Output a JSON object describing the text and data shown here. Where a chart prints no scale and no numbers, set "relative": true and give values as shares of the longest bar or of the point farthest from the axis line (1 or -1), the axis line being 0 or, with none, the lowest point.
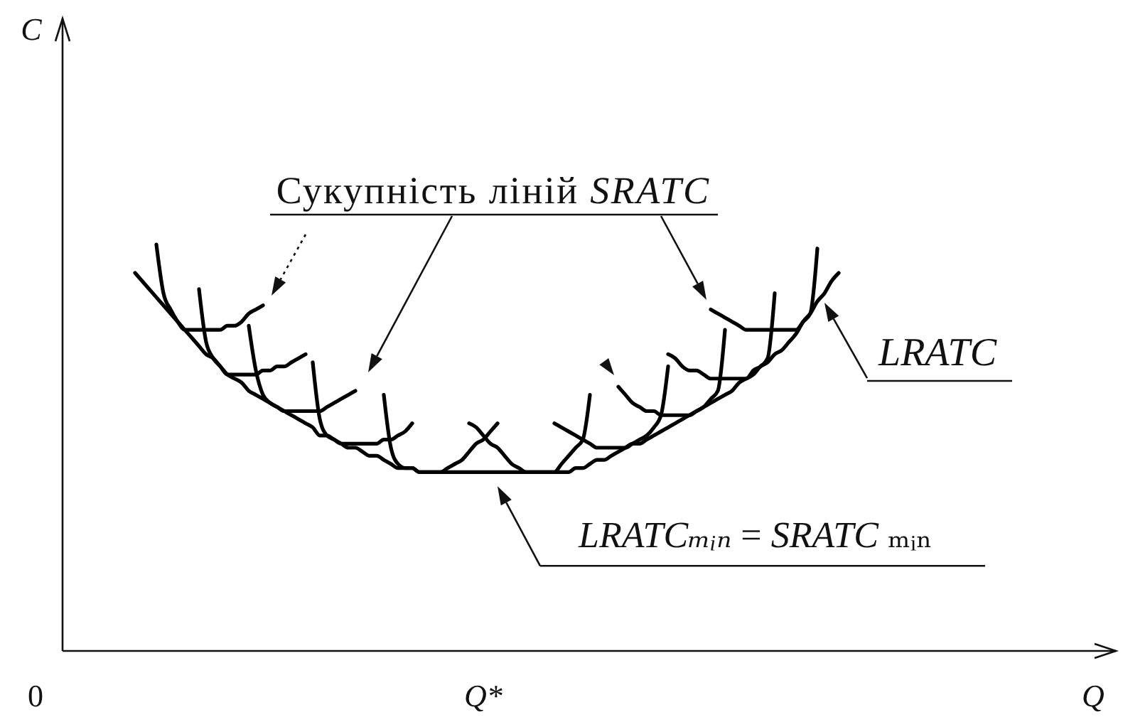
{
  "chart_data": {
    "type": "line",
    "relative": true,
    "categories": [
      "0",
      null,
      null,
      null,
      null,
      null,
      null,
      null,
      null,
      null,
      null,
      null,
      null,
      null,
      null,
      null,
      null,
      null,
      null,
      null,
      null,
      null,
      null,
      null,
      null,
      null,
      null,
      null,
      null,
      null,
      null,
      null,
      null,
      null,
      null,
      null,
      null,
      null,
      null,
      null,
      null,
      null,
      null,
      null,
      null,
      null,
      null,
      null,
      null,
      null,
      null,
      null,
      null,
      null,
      null,
      null,
      null,
      null,
      null,
      null,
      null,
      null,
      null,
      "Q*",
      null,
      null,
      null,
      null,
      null,
      null,
      null,
      null,
      null,
      null,
      null,
      null,
      null,
      null,
      null,
      null,
      null,
      null,
      null,
      null,
      null,
      null,
      null,
      null,
      null,
      null,
      null,
      null,
      null,
      null,
      null,
      null,
      null,
      null,
      null,
      null,
      null,
      null,
      null,
      null,
      null,
      null,
      null,
      null,
      null,
      null,
      null,
      null,
      null,
      null
    ],
    "series": [
      {
        "name": "LRATC",
        "color": "#000000",
        "values": [
          null,
          null,
          null,
          null,
          null,
          null,
          null,
          null,
          null,
          null,
          null,
          null,
          null,
          null,
          0.93,
          0.91,
          0.89,
          0.87,
          0.85,
          0.83,
          0.81,
          0.79,
          0.77,
          0.75,
          0.73,
          0.72,
          0.7,
          0.68,
          0.67,
          0.66,
          0.64,
          0.63,
          0.62,
          0.61,
          0.6,
          0.59,
          0.58,
          0.57,
          0.56,
          0.55,
          0.53,
          0.53,
          0.52,
          0.51,
          0.5,
          0.5,
          0.49,
          0.48,
          0.48,
          0.47,
          0.46,
          0.45,
          0.45,
          0.45,
          0.44,
          0.44,
          0.44,
          0.44,
          0.44,
          0.44,
          0.44,
          0.44,
          0.44,
          0.44,
          0.44,
          0.44,
          0.44,
          0.44,
          0.44,
          0.44,
          0.44,
          0.44,
          0.44,
          0.44,
          0.44,
          0.44,
          0.45,
          0.45,
          0.46,
          0.47,
          0.47,
          0.48,
          0.49,
          0.5,
          0.51,
          0.51,
          0.52,
          0.53,
          0.54,
          0.55,
          0.56,
          0.57,
          0.58,
          0.59,
          0.6,
          0.61,
          0.62,
          0.63,
          0.64,
          0.66,
          0.67,
          0.68,
          0.7,
          0.71,
          0.73,
          0.74,
          0.76,
          0.78,
          0.81,
          0.83,
          0.86,
          0.88,
          0.91,
          0.93
        ]
      },
      {
        "color": "#000000",
        "values": [
          null,
          null,
          null,
          null,
          null,
          null,
          null,
          null,
          null,
          null,
          null,
          null,
          null,
          null,
          null,
          null,
          null,
          1.0,
          0.88,
          0.84,
          0.81,
          0.79,
          0.79,
          0.79,
          0.79,
          0.79,
          0.79,
          0.8,
          0.8,
          0.81,
          0.83,
          0.84,
          0.85,
          null,
          null,
          null,
          null,
          null,
          null,
          null,
          null,
          null,
          null,
          null,
          null,
          null,
          null,
          null,
          null,
          null,
          null,
          null,
          null,
          null,
          null,
          null,
          null,
          null,
          null,
          null,
          null,
          null,
          null,
          null,
          null,
          null,
          null,
          null,
          null,
          null,
          null,
          null,
          null,
          null,
          null,
          null,
          null,
          null,
          null,
          null,
          null,
          null,
          null,
          null,
          null,
          null,
          null,
          null,
          null,
          null,
          null,
          null,
          null,
          null,
          null,
          null,
          null,
          null,
          null,
          null,
          null,
          null,
          null,
          null,
          null,
          null,
          null,
          null,
          null,
          null,
          null,
          null,
          null,
          null
        ]
      },
      {
        "color": "#000000",
        "values": [
          null,
          null,
          null,
          null,
          null,
          null,
          null,
          null,
          null,
          null,
          null,
          null,
          null,
          null,
          null,
          null,
          null,
          null,
          null,
          null,
          null,
          null,
          null,
          0.89,
          0.76,
          0.72,
          0.7,
          0.68,
          0.68,
          0.68,
          0.68,
          0.68,
          0.69,
          0.69,
          0.7,
          0.7,
          0.71,
          0.72,
          0.73,
          null,
          null,
          null,
          null,
          null,
          null,
          null,
          null,
          null,
          null,
          null,
          null,
          null,
          null,
          null,
          null,
          null,
          null,
          null,
          null,
          null,
          null,
          null,
          null,
          null,
          null,
          null,
          null,
          null,
          null,
          null,
          null,
          null,
          null,
          null,
          null,
          null,
          null,
          null,
          null,
          null,
          null,
          null,
          null,
          null,
          null,
          null,
          null,
          null,
          null,
          null,
          null,
          null,
          null,
          null,
          null,
          null,
          null,
          null,
          null,
          null,
          null,
          null,
          null,
          null,
          null,
          null,
          null,
          null,
          null,
          null,
          null,
          null,
          null,
          null
        ]
      },
      {
        "color": "#000000",
        "values": [
          null,
          null,
          null,
          null,
          null,
          null,
          null,
          null,
          null,
          null,
          null,
          null,
          null,
          null,
          null,
          null,
          null,
          null,
          null,
          null,
          null,
          null,
          null,
          null,
          null,
          null,
          null,
          null,
          null,
          null,
          0.8,
          0.69,
          0.63,
          0.61,
          0.6,
          0.59,
          0.59,
          0.59,
          0.59,
          0.59,
          0.59,
          0.6,
          0.61,
          0.62,
          0.63,
          0.64,
          null,
          null,
          null,
          null,
          null,
          null,
          null,
          null,
          null,
          null,
          null,
          null,
          null,
          null,
          null,
          null,
          null,
          null,
          null,
          null,
          null,
          null,
          null,
          null,
          null,
          null,
          null,
          null,
          null,
          null,
          null,
          null,
          null,
          null,
          null,
          null,
          null,
          null,
          null,
          null,
          null,
          null,
          null,
          null,
          null,
          null,
          null,
          null,
          null,
          null,
          null,
          null,
          null,
          null,
          null,
          null,
          null,
          null,
          null,
          null,
          null,
          null,
          null,
          null,
          null,
          null,
          null,
          null
        ]
      },
      {
        "color": "#000000",
        "values": [
          null,
          null,
          null,
          null,
          null,
          null,
          null,
          null,
          null,
          null,
          null,
          null,
          null,
          null,
          null,
          null,
          null,
          null,
          null,
          null,
          null,
          null,
          null,
          null,
          null,
          null,
          null,
          null,
          null,
          null,
          null,
          null,
          null,
          null,
          null,
          null,
          null,
          null,
          null,
          0.71,
          0.57,
          0.53,
          0.52,
          0.51,
          0.51,
          0.51,
          0.51,
          0.51,
          0.51,
          0.52,
          0.52,
          0.53,
          0.54,
          0.56,
          null,
          null,
          null,
          null,
          null,
          null,
          null,
          null,
          null,
          null,
          null,
          null,
          null,
          null,
          null,
          null,
          null,
          null,
          null,
          null,
          null,
          null,
          null,
          null,
          null,
          null,
          null,
          null,
          null,
          null,
          null,
          null,
          null,
          null,
          null,
          null,
          null,
          null,
          null,
          null,
          null,
          null,
          null,
          null,
          null,
          null,
          null,
          null,
          null,
          null,
          null,
          null,
          null,
          null,
          null,
          null,
          null,
          null,
          null,
          null
        ]
      },
      {
        "color": "#000000",
        "values": [
          null,
          null,
          null,
          null,
          null,
          null,
          null,
          null,
          null,
          null,
          null,
          null,
          null,
          null,
          null,
          null,
          null,
          null,
          null,
          null,
          null,
          null,
          null,
          null,
          null,
          null,
          null,
          null,
          null,
          null,
          null,
          null,
          null,
          null,
          null,
          null,
          null,
          null,
          null,
          null,
          null,
          null,
          null,
          null,
          null,
          null,
          null,
          null,
          null,
          0.63,
          0.5,
          0.46,
          0.45,
          0.45,
          0.44,
          0.44,
          0.44,
          0.44,
          0.45,
          0.46,
          0.47,
          0.49,
          0.51,
          0.52,
          0.54,
          0.56,
          null,
          null,
          null,
          null,
          null,
          null,
          null,
          null,
          null,
          null,
          null,
          null,
          null,
          null,
          null,
          null,
          null,
          null,
          null,
          null,
          null,
          null,
          null,
          null,
          null,
          null,
          null,
          null,
          null,
          null,
          null,
          null,
          null,
          null,
          null,
          null,
          null,
          null,
          null,
          null,
          null,
          null,
          null,
          null,
          null,
          null,
          null,
          null
        ]
      },
      {
        "color": "#000000",
        "values": [
          null,
          null,
          null,
          null,
          null,
          null,
          null,
          null,
          null,
          null,
          null,
          null,
          null,
          null,
          null,
          null,
          null,
          null,
          null,
          null,
          null,
          null,
          null,
          null,
          null,
          null,
          null,
          null,
          null,
          null,
          null,
          null,
          null,
          null,
          null,
          null,
          null,
          null,
          null,
          null,
          null,
          null,
          null,
          null,
          null,
          null,
          null,
          null,
          null,
          null,
          null,
          null,
          null,
          null,
          null,
          null,
          null,
          null,
          null,
          null,
          null,
          0.56,
          0.55,
          0.53,
          0.51,
          0.5,
          0.48,
          0.46,
          0.45,
          0.44,
          0.44,
          0.44,
          0.44,
          0.44,
          0.46,
          0.48,
          0.5,
          0.52,
          0.63,
          null,
          null,
          null,
          null,
          null,
          null,
          null,
          null,
          null,
          null,
          null,
          null,
          null,
          null,
          null,
          null,
          null,
          null,
          null,
          null,
          null,
          null,
          null,
          null,
          null,
          null,
          null,
          null,
          null,
          null,
          null,
          null,
          null,
          null,
          null
        ]
      },
      {
        "color": "#000000",
        "values": [
          null,
          null,
          null,
          null,
          null,
          null,
          null,
          null,
          null,
          null,
          null,
          null,
          null,
          null,
          null,
          null,
          null,
          null,
          null,
          null,
          null,
          null,
          null,
          null,
          null,
          null,
          null,
          null,
          null,
          null,
          null,
          null,
          null,
          null,
          null,
          null,
          null,
          null,
          null,
          null,
          null,
          null,
          null,
          null,
          null,
          null,
          null,
          null,
          null,
          null,
          null,
          null,
          null,
          null,
          null,
          null,
          null,
          null,
          null,
          null,
          null,
          null,
          null,
          null,
          null,
          null,
          null,
          null,
          null,
          null,
          null,
          null,
          null,
          0.56,
          0.55,
          0.54,
          0.53,
          0.52,
          0.51,
          0.5,
          0.5,
          0.5,
          0.5,
          0.5,
          0.51,
          0.52,
          0.53,
          0.55,
          0.58,
          0.7,
          null,
          null,
          null,
          null,
          null,
          null,
          null,
          null,
          null,
          null,
          null,
          null,
          null,
          null,
          null,
          null,
          null,
          null,
          null,
          null,
          null,
          null,
          null,
          null
        ]
      },
      {
        "color": "#000000",
        "values": [
          null,
          null,
          null,
          null,
          null,
          null,
          null,
          null,
          null,
          null,
          null,
          null,
          null,
          null,
          null,
          null,
          null,
          null,
          null,
          null,
          null,
          null,
          null,
          null,
          null,
          null,
          null,
          null,
          null,
          null,
          null,
          null,
          null,
          null,
          null,
          null,
          null,
          null,
          null,
          null,
          null,
          null,
          null,
          null,
          null,
          null,
          null,
          null,
          null,
          null,
          null,
          null,
          null,
          null,
          null,
          null,
          null,
          null,
          null,
          null,
          null,
          null,
          null,
          null,
          null,
          null,
          null,
          null,
          null,
          null,
          null,
          null,
          null,
          null,
          null,
          null,
          null,
          null,
          null,
          null,
          null,
          null,
          0.65,
          0.63,
          0.61,
          0.6,
          0.59,
          0.59,
          0.58,
          0.58,
          0.58,
          0.58,
          0.58,
          0.59,
          0.6,
          0.62,
          0.64,
          0.79,
          null,
          null,
          null,
          null,
          null,
          null,
          null,
          null,
          null,
          null,
          null,
          null,
          null,
          null,
          null,
          null
        ]
      },
      {
        "color": "#000000",
        "values": [
          null,
          null,
          null,
          null,
          null,
          null,
          null,
          null,
          null,
          null,
          null,
          null,
          null,
          null,
          null,
          null,
          null,
          null,
          null,
          null,
          null,
          null,
          null,
          null,
          null,
          null,
          null,
          null,
          null,
          null,
          null,
          null,
          null,
          null,
          null,
          null,
          null,
          null,
          null,
          null,
          null,
          null,
          null,
          null,
          null,
          null,
          null,
          null,
          null,
          null,
          null,
          null,
          null,
          null,
          null,
          null,
          null,
          null,
          null,
          null,
          null,
          null,
          null,
          null,
          null,
          null,
          null,
          null,
          null,
          null,
          null,
          null,
          null,
          null,
          null,
          null,
          null,
          null,
          null,
          null,
          null,
          null,
          null,
          null,
          null,
          null,
          null,
          null,
          null,
          0.73,
          0.72,
          0.7,
          0.69,
          0.69,
          0.68,
          0.67,
          0.67,
          0.67,
          0.67,
          0.67,
          0.67,
          0.69,
          0.7,
          0.72,
          0.88,
          null,
          null,
          null,
          null,
          null,
          null,
          null,
          null,
          null
        ]
      },
      {
        "color": "#000000",
        "values": [
          null,
          null,
          null,
          null,
          null,
          null,
          null,
          null,
          null,
          null,
          null,
          null,
          null,
          null,
          null,
          null,
          null,
          null,
          null,
          null,
          null,
          null,
          null,
          null,
          null,
          null,
          null,
          null,
          null,
          null,
          null,
          null,
          null,
          null,
          null,
          null,
          null,
          null,
          null,
          null,
          null,
          null,
          null,
          null,
          null,
          null,
          null,
          null,
          null,
          null,
          null,
          null,
          null,
          null,
          null,
          null,
          null,
          null,
          null,
          null,
          null,
          null,
          null,
          null,
          null,
          null,
          null,
          null,
          null,
          null,
          null,
          null,
          null,
          null,
          null,
          null,
          null,
          null,
          null,
          null,
          null,
          null,
          null,
          null,
          null,
          null,
          null,
          null,
          null,
          null,
          null,
          null,
          null,
          null,
          null,
          0.84,
          0.83,
          0.82,
          0.81,
          0.8,
          0.79,
          0.79,
          0.79,
          0.79,
          0.79,
          0.79,
          0.79,
          0.79,
          0.81,
          0.83,
          0.99,
          null,
          null,
          null
        ]
      }
    ],
    "annotations": [
      "Сукупність ліній SRATC",
      {
        "text": "LRATCₘᵢₙ = SRATC ₘᵢₙ",
        "x": "Q*",
        "y": 0.44
      },
      "C",
      "Q"
    ]
  }
}
